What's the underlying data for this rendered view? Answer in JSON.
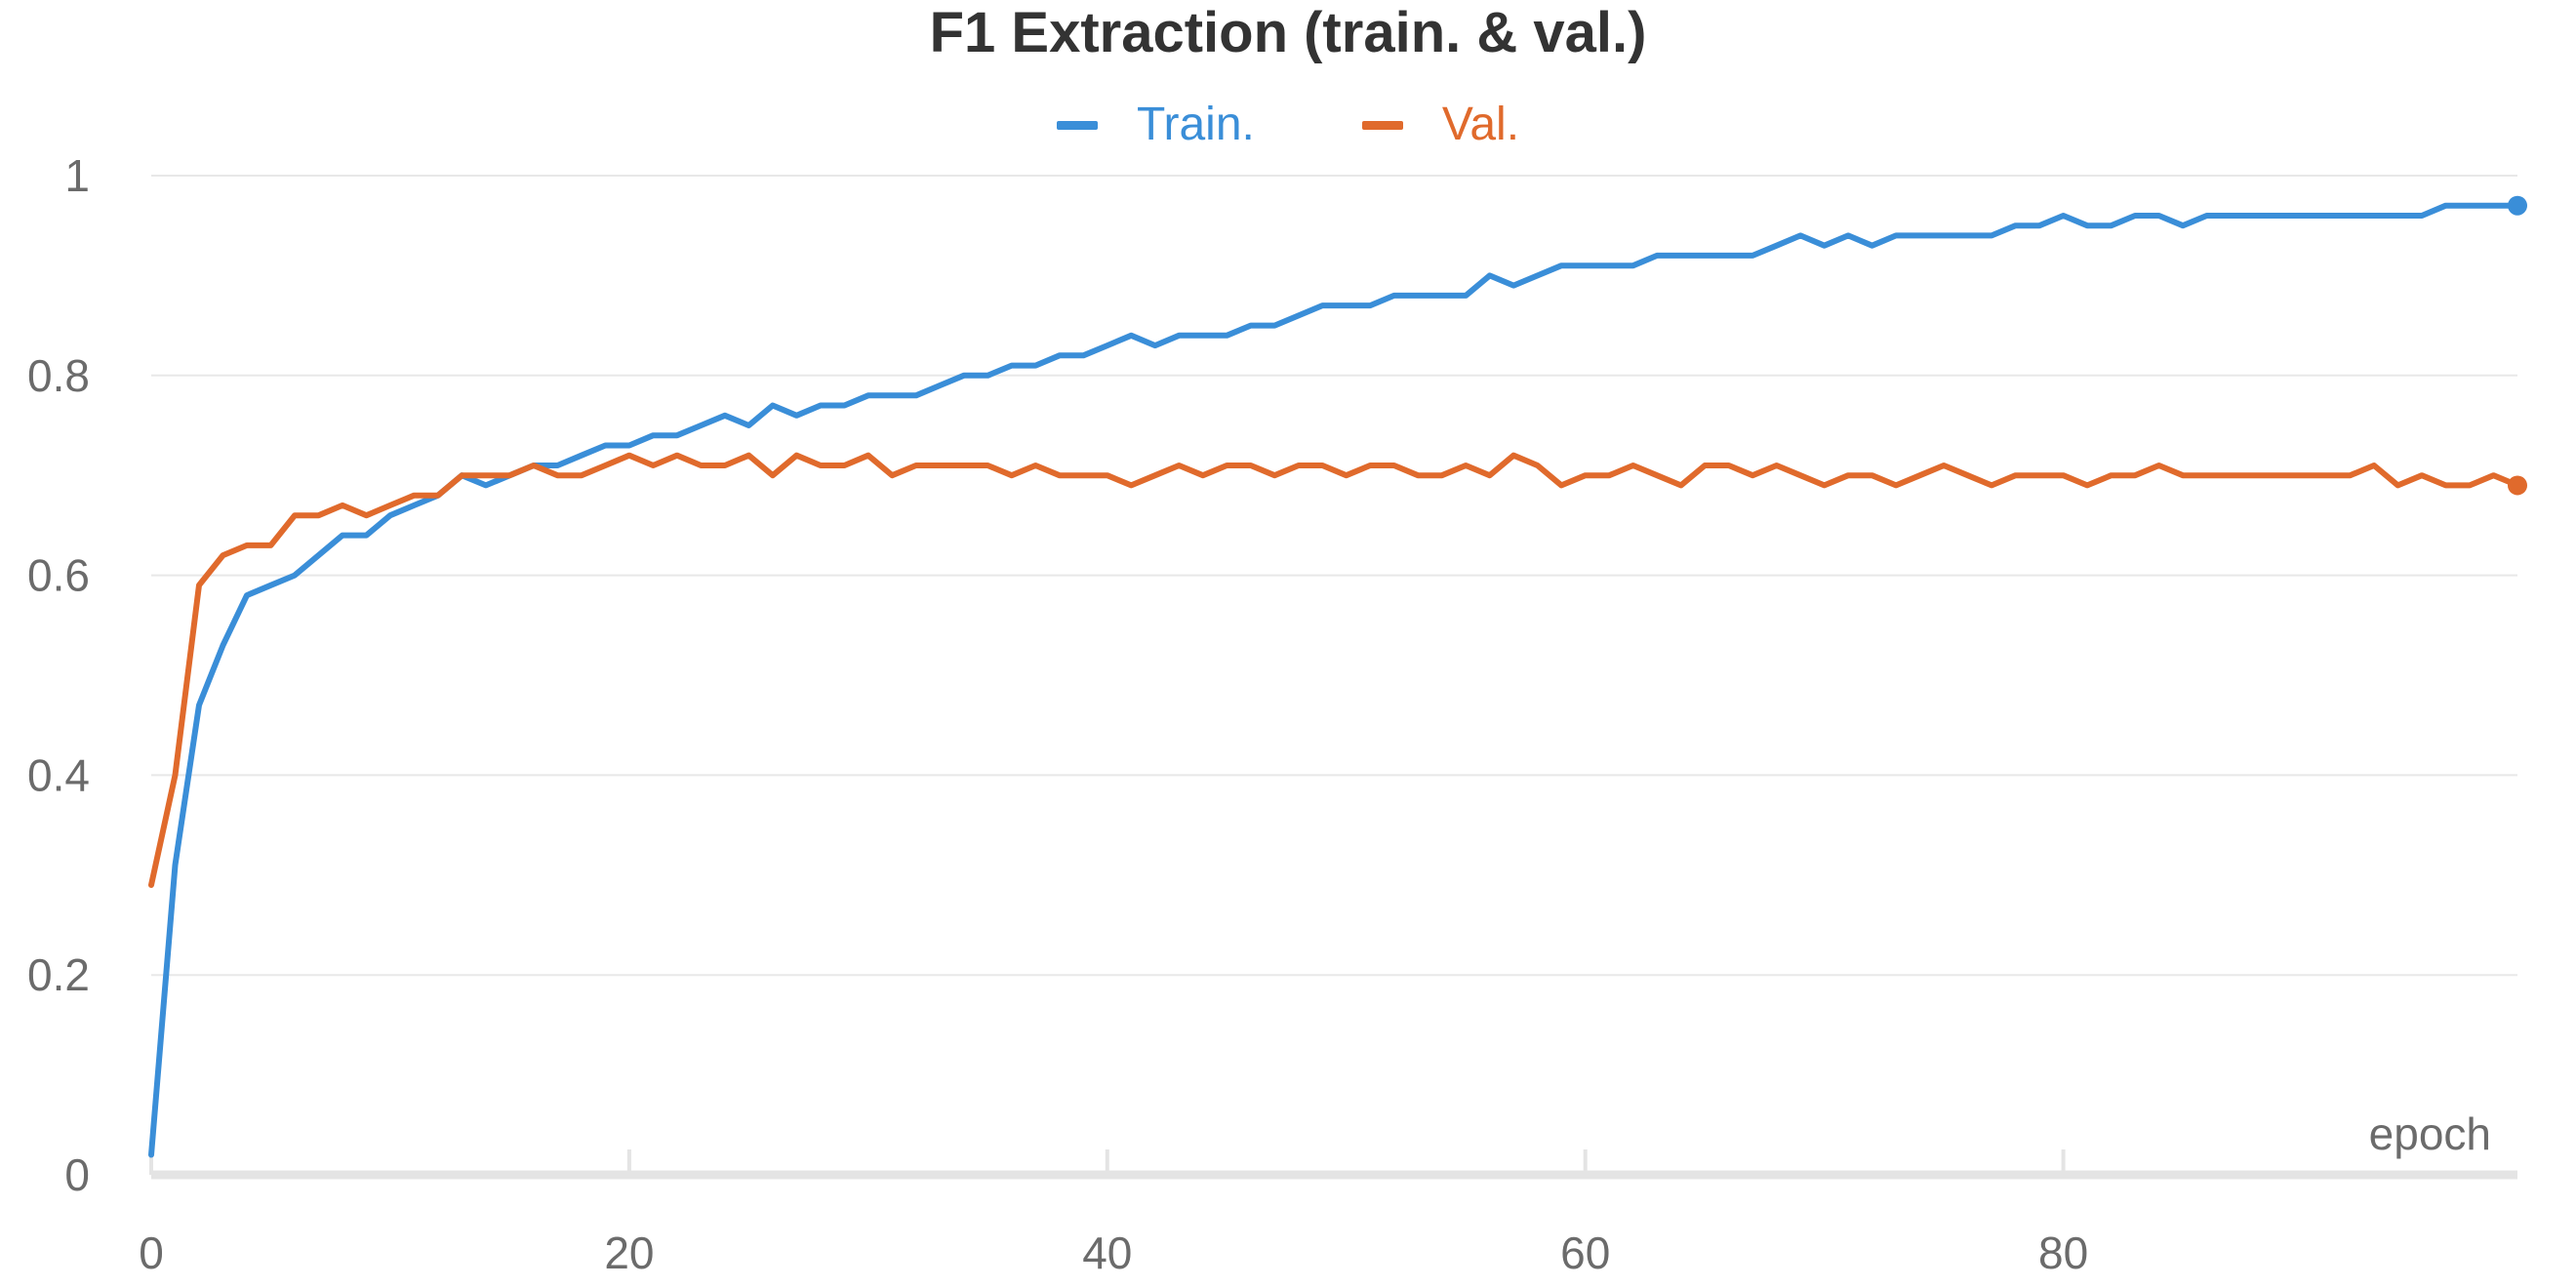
{
  "chart_data": {
    "type": "line",
    "title": "F1 Extraction (train. & val.)",
    "xlabel": "epoch",
    "ylabel": "",
    "xlim": [
      0,
      99
    ],
    "ylim": [
      0,
      1
    ],
    "xticks": [
      0,
      20,
      40,
      60,
      80
    ],
    "yticks": [
      0,
      0.2,
      0.4,
      0.6,
      0.8,
      1
    ],
    "ytick_labels": [
      "0",
      "0.2",
      "0.4",
      "0.6",
      "0.8",
      "1"
    ],
    "grid": "horizontal",
    "legend_position": "top-center",
    "colors": {
      "train": "#3a8ed8",
      "val": "#e06a2c",
      "axis": "#e4e4e4",
      "grid": "#e8e8e8",
      "tick_text": "#6b6b6b",
      "title": "#333333"
    },
    "series": [
      {
        "name": "Train.",
        "color": "#3a8ed8",
        "values": [
          0.02,
          0.31,
          0.47,
          0.53,
          0.58,
          0.59,
          0.6,
          0.62,
          0.64,
          0.64,
          0.66,
          0.67,
          0.68,
          0.7,
          0.69,
          0.7,
          0.71,
          0.71,
          0.72,
          0.73,
          0.73,
          0.74,
          0.74,
          0.75,
          0.76,
          0.75,
          0.77,
          0.76,
          0.77,
          0.77,
          0.78,
          0.78,
          0.78,
          0.79,
          0.8,
          0.8,
          0.81,
          0.81,
          0.82,
          0.82,
          0.83,
          0.84,
          0.83,
          0.84,
          0.84,
          0.84,
          0.85,
          0.85,
          0.86,
          0.87,
          0.87,
          0.87,
          0.88,
          0.88,
          0.88,
          0.88,
          0.9,
          0.89,
          0.9,
          0.91,
          0.91,
          0.91,
          0.91,
          0.92,
          0.92,
          0.92,
          0.92,
          0.92,
          0.93,
          0.94,
          0.93,
          0.94,
          0.93,
          0.94,
          0.94,
          0.94,
          0.94,
          0.94,
          0.95,
          0.95,
          0.96,
          0.95,
          0.95,
          0.96,
          0.96,
          0.95,
          0.96,
          0.96,
          0.96,
          0.96,
          0.96,
          0.96,
          0.96,
          0.96,
          0.96,
          0.96,
          0.97,
          0.97,
          0.97,
          0.97
        ]
      },
      {
        "name": "Val.",
        "color": "#e06a2c",
        "values": [
          0.29,
          0.4,
          0.59,
          0.62,
          0.63,
          0.63,
          0.66,
          0.66,
          0.67,
          0.66,
          0.67,
          0.68,
          0.68,
          0.7,
          0.7,
          0.7,
          0.71,
          0.7,
          0.7,
          0.71,
          0.72,
          0.71,
          0.72,
          0.71,
          0.71,
          0.72,
          0.7,
          0.72,
          0.71,
          0.71,
          0.72,
          0.7,
          0.71,
          0.71,
          0.71,
          0.71,
          0.7,
          0.71,
          0.7,
          0.7,
          0.7,
          0.69,
          0.7,
          0.71,
          0.7,
          0.71,
          0.71,
          0.7,
          0.71,
          0.71,
          0.7,
          0.71,
          0.71,
          0.7,
          0.7,
          0.71,
          0.7,
          0.72,
          0.71,
          0.69,
          0.7,
          0.7,
          0.71,
          0.7,
          0.69,
          0.71,
          0.71,
          0.7,
          0.71,
          0.7,
          0.69,
          0.7,
          0.7,
          0.69,
          0.7,
          0.71,
          0.7,
          0.69,
          0.7,
          0.7,
          0.7,
          0.69,
          0.7,
          0.7,
          0.71,
          0.7,
          0.7,
          0.7,
          0.7,
          0.7,
          0.7,
          0.7,
          0.7,
          0.71,
          0.69,
          0.7,
          0.69,
          0.69,
          0.7,
          0.69
        ]
      }
    ]
  }
}
